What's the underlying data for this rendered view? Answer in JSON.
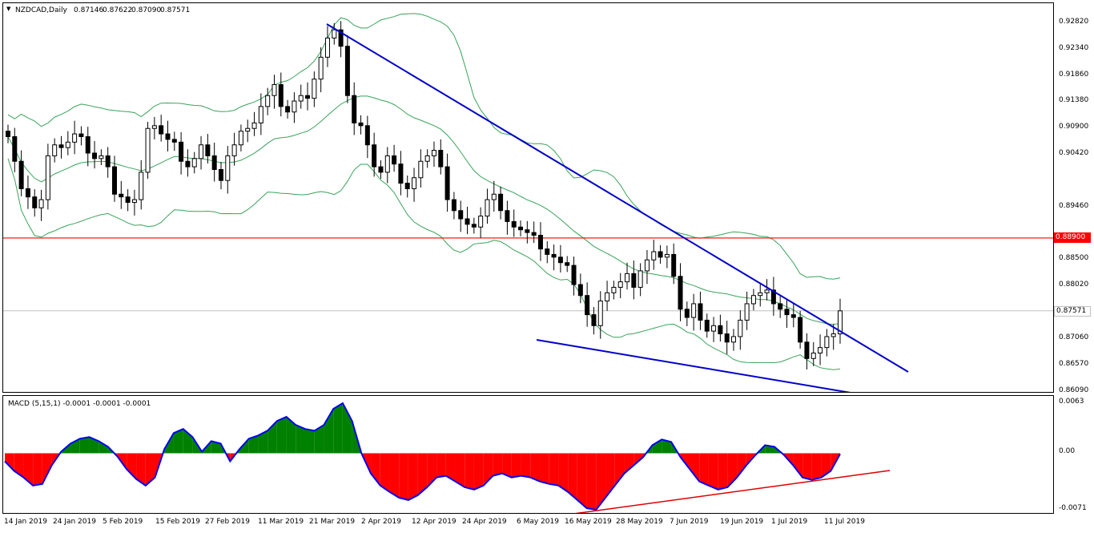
{
  "chart": {
    "header_label": "NZDCAD,Daily",
    "ohlc": {
      "open": "0.87146",
      "high": "0.87622",
      "low": "0.87090",
      "close": "0.87571"
    },
    "menu_icon": "triangle-down-icon"
  },
  "macd": {
    "header_label": "MACD (5,15,1) -0.0001 -0.0001 -0.0001",
    "axis_labels": [
      "0.0063",
      "0.00",
      "-0.0071"
    ]
  },
  "price_axis": {
    "labels": [
      "0.92820",
      "0.92340",
      "0.91860",
      "0.91380",
      "0.90900",
      "0.90420",
      "0.89460",
      "0.88500",
      "0.88020",
      "0.87060",
      "0.86570",
      "0.86090"
    ]
  },
  "horizontal_line": {
    "value": "0.88900",
    "color": "#ff0000"
  },
  "current_price": {
    "value": "0.87571",
    "color": "#c0c0c0"
  },
  "date_axis": {
    "labels": [
      "14 Jan 2019",
      "24 Jan 2019",
      "5 Feb 2019",
      "15 Feb 2019",
      "27 Feb 2019",
      "11 Mar 2019",
      "21 Mar 2019",
      "2 Apr 2019",
      "12 Apr 2019",
      "24 Apr 2019",
      "6 May 2019",
      "16 May 2019",
      "28 May 2019",
      "7 Jun 2019",
      "19 Jun 2019",
      "1 Jul 2019",
      "11 Jul 2019"
    ]
  },
  "chart_data": [
    {
      "type": "candlestick",
      "title": "NZDCAD,Daily",
      "symbol": "NZDCAD",
      "timeframe": "Daily",
      "ylim": [
        0.8609,
        0.9282
      ],
      "grid": false,
      "close_series": [
        0.9075,
        0.903,
        0.898,
        0.8965,
        0.8945,
        0.896,
        0.904,
        0.906,
        0.9055,
        0.9065,
        0.908,
        0.9075,
        0.9045,
        0.9035,
        0.904,
        0.902,
        0.897,
        0.8965,
        0.8955,
        0.896,
        0.901,
        0.909,
        0.9095,
        0.908,
        0.907,
        0.9065,
        0.903,
        0.902,
        0.9035,
        0.906,
        0.904,
        0.9015,
        0.8995,
        0.904,
        0.906,
        0.9085,
        0.909,
        0.91,
        0.913,
        0.915,
        0.917,
        0.913,
        0.912,
        0.914,
        0.915,
        0.9145,
        0.918,
        0.922,
        0.9255,
        0.927,
        0.924,
        0.915,
        0.91,
        0.9095,
        0.906,
        0.902,
        0.901,
        0.904,
        0.9025,
        0.899,
        0.898,
        0.9,
        0.903,
        0.904,
        0.905,
        0.902,
        0.896,
        0.894,
        0.8925,
        0.8915,
        0.891,
        0.893,
        0.896,
        0.897,
        0.894,
        0.892,
        0.891,
        0.8905,
        0.89,
        0.8895,
        0.887,
        0.886,
        0.8855,
        0.8845,
        0.884,
        0.8805,
        0.8785,
        0.875,
        0.873,
        0.8775,
        0.879,
        0.88,
        0.881,
        0.8825,
        0.88,
        0.883,
        0.885,
        0.8865,
        0.8855,
        0.886,
        0.882,
        0.876,
        0.8745,
        0.877,
        0.874,
        0.872,
        0.873,
        0.8715,
        0.87,
        0.871,
        0.874,
        0.877,
        0.8785,
        0.879,
        0.8795,
        0.877,
        0.876,
        0.875,
        0.8745,
        0.87,
        0.867,
        0.868,
        0.869,
        0.871,
        0.8715,
        0.8757
      ]
    },
    {
      "type": "area",
      "title": "MACD (5,15,1)",
      "values_text": "-0.0001 -0.0001 -0.0001",
      "ylim": [
        -0.0071,
        0.0063
      ],
      "colors": {
        "positive": "#008000",
        "negative": "#ff0000",
        "line": "#0000ff"
      },
      "values": [
        -0.001,
        -0.0022,
        -0.003,
        -0.004,
        -0.0038,
        -0.0015,
        0.0002,
        0.0012,
        0.0018,
        0.002,
        0.0015,
        0.0008,
        -0.0004,
        -0.002,
        -0.0032,
        -0.004,
        -0.003,
        0.0005,
        0.0025,
        0.003,
        0.002,
        0.0002,
        0.0015,
        0.0012,
        -0.001,
        0.0005,
        0.0018,
        0.0022,
        0.0028,
        0.004,
        0.0045,
        0.0035,
        0.003,
        0.0028,
        0.0035,
        0.0055,
        0.0062,
        0.004,
        0.0,
        -0.0025,
        -0.004,
        -0.0048,
        -0.0055,
        -0.0058,
        -0.0052,
        -0.0042,
        -0.003,
        -0.0028,
        -0.0035,
        -0.0042,
        -0.0045,
        -0.004,
        -0.0028,
        -0.0025,
        -0.003,
        -0.0028,
        -0.003,
        -0.0035,
        -0.0038,
        -0.004,
        -0.0048,
        -0.0058,
        -0.0068,
        -0.007,
        -0.0055,
        -0.004,
        -0.0025,
        -0.0015,
        -0.0005,
        0.001,
        0.0017,
        0.0014,
        -0.0005,
        -0.002,
        -0.0035,
        -0.004,
        -0.0045,
        -0.0042,
        -0.003,
        -0.0015,
        -0.0002,
        0.001,
        0.0008,
        -0.0002,
        -0.0015,
        -0.003,
        -0.0033,
        -0.003,
        -0.0022,
        -0.0001
      ]
    }
  ]
}
